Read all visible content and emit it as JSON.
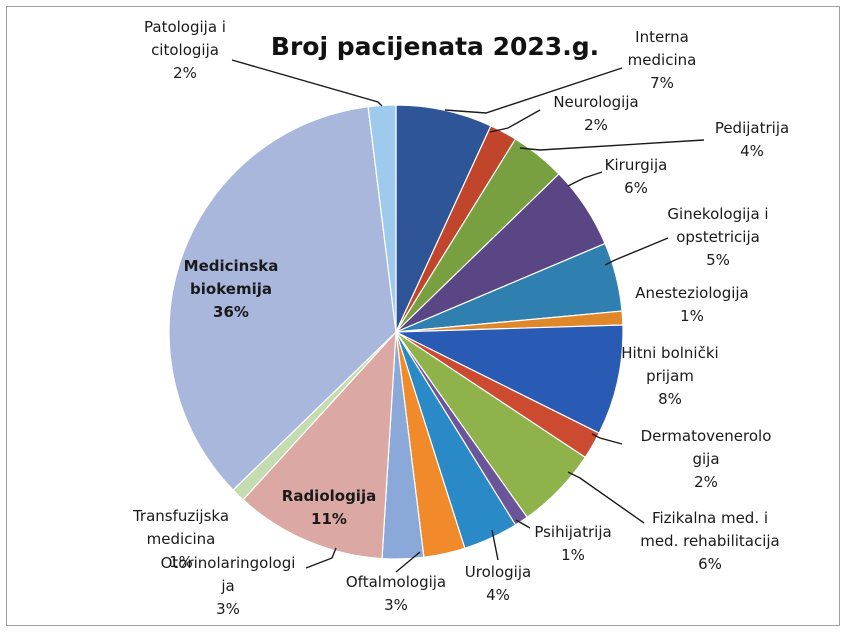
{
  "chart_data": {
    "type": "pie",
    "title": "Broj pacijenata 2023.g.",
    "slices": [
      {
        "name": "Interna medicina",
        "label_lines": [
          "Interna",
          "medicina"
        ],
        "value": 7,
        "value_label": "7%",
        "color": "#2e5597",
        "bold": false
      },
      {
        "name": "Neurologija",
        "label_lines": [
          "Neurologija"
        ],
        "value": 2,
        "value_label": "2%",
        "color": "#c0452a",
        "bold": false
      },
      {
        "name": "Pedijatrija",
        "label_lines": [
          "Pedijatrija"
        ],
        "value": 4,
        "value_label": "4%",
        "color": "#78a040",
        "bold": false
      },
      {
        "name": "Kirurgija",
        "label_lines": [
          "Kirurgija"
        ],
        "value": 6,
        "value_label": "6%",
        "color": "#5a4585",
        "bold": false
      },
      {
        "name": "Ginekologija i opstetricija",
        "label_lines": [
          "Ginekologija i",
          "opstetricija"
        ],
        "value": 5,
        "value_label": "5%",
        "color": "#2f80b0",
        "bold": false
      },
      {
        "name": "Anesteziologija",
        "label_lines": [
          "Anesteziologija"
        ],
        "value": 1,
        "value_label": "1%",
        "color": "#e0872a",
        "bold": false
      },
      {
        "name": "Hitni bolnički prijam",
        "label_lines": [
          "Hitni bolnički",
          "prijam"
        ],
        "value": 8,
        "value_label": "8%",
        "color": "#2a5bb4",
        "bold": false
      },
      {
        "name": "Dermatovenerologija",
        "label_lines": [
          "Dermatovenerolo",
          "gija"
        ],
        "value": 2,
        "value_label": "2%",
        "color": "#cc4a30",
        "bold": false
      },
      {
        "name": "Fizikalna med. i med. rehabilitacija",
        "label_lines": [
          "Fizikalna med. i",
          "med. rehabilitacija"
        ],
        "value": 6,
        "value_label": "6%",
        "color": "#8fb24a",
        "bold": false
      },
      {
        "name": "Psihijatrija",
        "label_lines": [
          "Psihijatrija"
        ],
        "value": 1,
        "value_label": "1%",
        "color": "#6b559a",
        "bold": false
      },
      {
        "name": "Urologija",
        "label_lines": [
          "Urologija"
        ],
        "value": 4,
        "value_label": "4%",
        "color": "#2a8ac8",
        "bold": false
      },
      {
        "name": "Oftalmologija",
        "label_lines": [
          "Oftalmologija"
        ],
        "value": 3,
        "value_label": "3%",
        "color": "#f08a2a",
        "bold": false
      },
      {
        "name": "Otorinolaringologija",
        "label_lines": [
          "Otorinolaringologi",
          "ja"
        ],
        "value": 3,
        "value_label": "3%",
        "color": "#8aa8d8",
        "bold": false
      },
      {
        "name": "Radiologija",
        "label_lines": [
          "Radiologija"
        ],
        "value": 11,
        "value_label": "11%",
        "color": "#dba8a4",
        "bold": true
      },
      {
        "name": "Transfuzijska medicina",
        "label_lines": [
          "Transfuzijska",
          "medicina"
        ],
        "value": 1,
        "value_label": "1%",
        "color": "#c4dcb0",
        "bold": false
      },
      {
        "name": "Medicinska biokemija",
        "label_lines": [
          "Medicinska",
          "biokemija"
        ],
        "value": 36,
        "value_label": "36%",
        "color": "#a9b7dd",
        "bold": true
      },
      {
        "name": "Patologija i citologija",
        "label_lines": [
          "Patologija i",
          "citologija"
        ],
        "value": 2,
        "value_label": "2%",
        "color": "#9ecbed",
        "bold": false
      }
    ]
  }
}
